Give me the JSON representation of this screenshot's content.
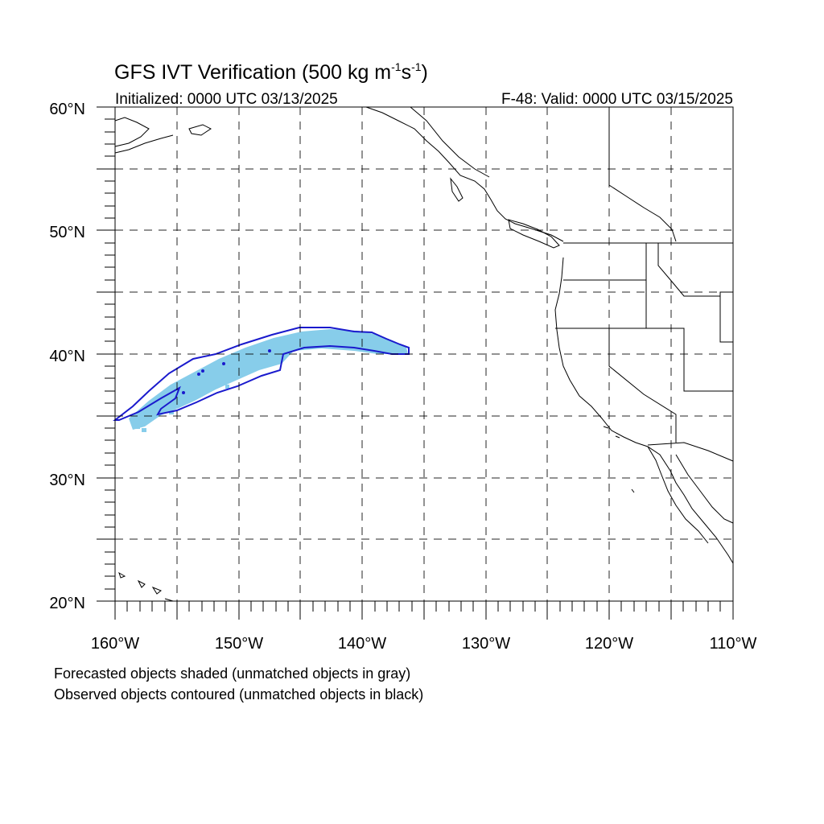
{
  "figure": {
    "title": "GFS IVT Verification (500 kg m",
    "title_exp1": "-1",
    "title_mid": "s",
    "title_exp2": "-1",
    "title_end": ")",
    "initialized": "Initialized: 0000 UTC 03/13/2025",
    "valid": "F-48: Valid: 0000 UTC 03/15/2025"
  },
  "map": {
    "lon_range": [
      -160,
      -110
    ],
    "lat_range": [
      20,
      60
    ],
    "lon_labels": [
      "160°W",
      "150°W",
      "140°W",
      "130°W",
      "120°W",
      "110°W"
    ],
    "lat_labels": [
      "20°N",
      "30°N",
      "40°N",
      "50°N",
      "60°N"
    ],
    "grid": "dashed every 5°",
    "forecast_shade_color": "#87cdea",
    "observed_contour_color": "#1a1acd",
    "coastline_color": "#000000"
  },
  "legend": {
    "line1": "Forecasted objects shaded (unmatched objects in gray)",
    "line2": "Observed objects contoured (unmatched objects in black)"
  }
}
